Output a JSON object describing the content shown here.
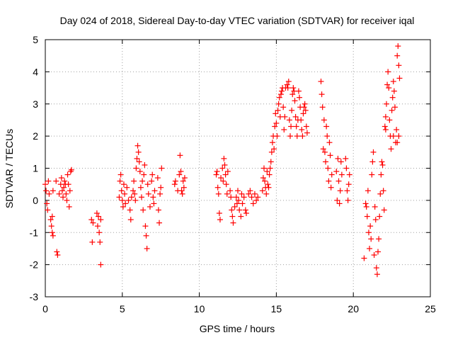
{
  "chart_data": {
    "type": "scatter",
    "title": "Day 024 of 2018, Sidereal Day-to-day VTEC variation (SDTVAR) for receiver iqal",
    "xlabel": "GPS time / hours",
    "ylabel": "SDTVAR / TECUs",
    "xlim": [
      0,
      25
    ],
    "ylim": [
      -3,
      5
    ],
    "xticks": [
      "0",
      "5",
      "10",
      "15",
      "20",
      "25"
    ],
    "yticks": [
      "-3",
      "-2",
      "-1",
      "0",
      "1",
      "2",
      "3",
      "4",
      "5"
    ],
    "grid": true,
    "marker": "+",
    "color": "#ff0000",
    "series": [
      {
        "name": "SDTVAR",
        "points": [
          [
            0.0,
            0.5
          ],
          [
            0.05,
            0.3
          ],
          [
            0.1,
            -0.1
          ],
          [
            0.15,
            -0.3
          ],
          [
            0.2,
            0.6
          ],
          [
            0.25,
            0.2
          ],
          [
            0.35,
            -0.6
          ],
          [
            0.4,
            -0.8
          ],
          [
            0.45,
            -1.0
          ],
          [
            0.5,
            -1.1
          ],
          [
            0.45,
            -0.5
          ],
          [
            0.5,
            0.3
          ],
          [
            0.7,
            0.6
          ],
          [
            0.75,
            -1.6
          ],
          [
            0.8,
            -1.7
          ],
          [
            0.9,
            0.2
          ],
          [
            1.0,
            0.5
          ],
          [
            1.05,
            0.7
          ],
          [
            1.1,
            0.3
          ],
          [
            1.15,
            0.1
          ],
          [
            1.2,
            0.4
          ],
          [
            1.25,
            0.6
          ],
          [
            1.3,
            0.5
          ],
          [
            1.35,
            0.2
          ],
          [
            1.4,
            0.0
          ],
          [
            1.45,
            0.8
          ],
          [
            1.5,
            0.5
          ],
          [
            1.55,
            -0.2
          ],
          [
            1.6,
            0.3
          ],
          [
            1.65,
            0.9
          ],
          [
            1.7,
            0.95
          ],
          [
            3.0,
            -0.6
          ],
          [
            3.05,
            -1.3
          ],
          [
            3.1,
            -0.7
          ],
          [
            3.35,
            -0.4
          ],
          [
            3.4,
            -0.8
          ],
          [
            3.45,
            -0.5
          ],
          [
            3.5,
            -1.0
          ],
          [
            3.55,
            -1.3
          ],
          [
            3.6,
            -2.0
          ],
          [
            3.6,
            -0.6
          ],
          [
            4.8,
            0.1
          ],
          [
            4.85,
            0.6
          ],
          [
            4.9,
            0.8
          ],
          [
            4.95,
            0.3
          ],
          [
            5.0,
            0.0
          ],
          [
            5.05,
            -0.2
          ],
          [
            5.1,
            0.5
          ],
          [
            5.15,
            0.2
          ],
          [
            5.2,
            -0.1
          ],
          [
            5.3,
            0.4
          ],
          [
            5.4,
            0.0
          ],
          [
            5.5,
            -0.3
          ],
          [
            5.55,
            -0.6
          ],
          [
            5.6,
            0.1
          ],
          [
            5.7,
            0.3
          ],
          [
            5.75,
            0.6
          ],
          [
            5.8,
            0.2
          ],
          [
            5.85,
            0.0
          ],
          [
            5.9,
            1.0
          ],
          [
            5.95,
            1.3
          ],
          [
            6.0,
            1.7
          ],
          [
            6.05,
            1.5
          ],
          [
            6.1,
            1.2
          ],
          [
            6.15,
            0.9
          ],
          [
            6.2,
            0.4
          ],
          [
            6.25,
            0.1
          ],
          [
            6.3,
            0.6
          ],
          [
            6.35,
            -0.3
          ],
          [
            6.4,
            0.8
          ],
          [
            6.45,
            1.1
          ],
          [
            6.5,
            -0.8
          ],
          [
            6.55,
            -1.1
          ],
          [
            6.6,
            -1.5
          ],
          [
            6.65,
            0.5
          ],
          [
            6.7,
            0.2
          ],
          [
            6.8,
            -0.2
          ],
          [
            6.9,
            0.6
          ],
          [
            6.95,
            0.8
          ],
          [
            7.0,
            0.1
          ],
          [
            7.05,
            -0.1
          ],
          [
            7.1,
            0.3
          ],
          [
            7.3,
            0.7
          ],
          [
            7.35,
            -0.3
          ],
          [
            7.4,
            -0.7
          ],
          [
            7.45,
            0.2
          ],
          [
            7.5,
            0.4
          ],
          [
            7.55,
            1.0
          ],
          [
            8.4,
            0.5
          ],
          [
            8.45,
            0.6
          ],
          [
            8.6,
            0.3
          ],
          [
            8.7,
            0.8
          ],
          [
            8.75,
            1.4
          ],
          [
            8.8,
            0.9
          ],
          [
            8.85,
            0.3
          ],
          [
            8.9,
            0.2
          ],
          [
            8.95,
            0.6
          ],
          [
            9.0,
            0.4
          ],
          [
            9.05,
            0.7
          ],
          [
            11.1,
            0.8
          ],
          [
            11.15,
            0.9
          ],
          [
            11.2,
            0.4
          ],
          [
            11.25,
            0.2
          ],
          [
            11.3,
            -0.4
          ],
          [
            11.35,
            -0.6
          ],
          [
            11.4,
            0.7
          ],
          [
            11.5,
            1.0
          ],
          [
            11.55,
            0.6
          ],
          [
            11.6,
            1.3
          ],
          [
            11.65,
            1.1
          ],
          [
            11.7,
            0.8
          ],
          [
            11.75,
            0.5
          ],
          [
            11.8,
            0.2
          ],
          [
            11.85,
            0.9
          ],
          [
            12.0,
            0.3
          ],
          [
            12.05,
            0.1
          ],
          [
            12.1,
            -0.3
          ],
          [
            12.15,
            -0.5
          ],
          [
            12.2,
            -0.7
          ],
          [
            12.3,
            -0.2
          ],
          [
            12.4,
            0.1
          ],
          [
            12.45,
            -0.1
          ],
          [
            12.5,
            0.3
          ],
          [
            12.55,
            0.0
          ],
          [
            12.6,
            -0.3
          ],
          [
            12.7,
            -0.5
          ],
          [
            12.75,
            0.2
          ],
          [
            12.8,
            -0.1
          ],
          [
            12.9,
            0.1
          ],
          [
            13.0,
            -0.3
          ],
          [
            13.05,
            -0.4
          ],
          [
            13.2,
            0.2
          ],
          [
            13.3,
            0.3
          ],
          [
            13.4,
            0.1
          ],
          [
            13.5,
            -0.1
          ],
          [
            13.6,
            0.2
          ],
          [
            13.7,
            0.0
          ],
          [
            13.8,
            0.1
          ],
          [
            14.1,
            0.3
          ],
          [
            14.15,
            0.7
          ],
          [
            14.2,
            1.0
          ],
          [
            14.25,
            0.6
          ],
          [
            14.3,
            0.4
          ],
          [
            14.35,
            0.2
          ],
          [
            14.4,
            0.9
          ],
          [
            14.45,
            0.5
          ],
          [
            14.5,
            0.4
          ],
          [
            14.55,
            0.8
          ],
          [
            14.6,
            1.0
          ],
          [
            14.65,
            1.2
          ],
          [
            14.7,
            1.5
          ],
          [
            14.75,
            1.8
          ],
          [
            14.8,
            2.0
          ],
          [
            14.85,
            1.6
          ],
          [
            14.9,
            2.3
          ],
          [
            14.95,
            2.7
          ],
          [
            15.0,
            2.4
          ],
          [
            15.05,
            2.0
          ],
          [
            15.1,
            2.8
          ],
          [
            15.15,
            3.0
          ],
          [
            15.2,
            3.2
          ],
          [
            15.25,
            2.6
          ],
          [
            15.3,
            3.3
          ],
          [
            15.35,
            3.4
          ],
          [
            15.4,
            3.5
          ],
          [
            15.45,
            2.9
          ],
          [
            15.5,
            2.2
          ],
          [
            15.55,
            2.6
          ],
          [
            15.6,
            3.5
          ],
          [
            15.7,
            3.6
          ],
          [
            15.75,
            3.5
          ],
          [
            15.8,
            3.7
          ],
          [
            15.85,
            2.5
          ],
          [
            15.9,
            2.0
          ],
          [
            15.95,
            2.3
          ],
          [
            16.0,
            2.8
          ],
          [
            16.05,
            3.3
          ],
          [
            16.1,
            3.5
          ],
          [
            16.15,
            3.4
          ],
          [
            16.2,
            3.1
          ],
          [
            16.25,
            2.6
          ],
          [
            16.3,
            2.3
          ],
          [
            16.35,
            2.0
          ],
          [
            16.4,
            2.5
          ],
          [
            16.45,
            3.4
          ],
          [
            16.5,
            3.2
          ],
          [
            16.55,
            2.9
          ],
          [
            16.6,
            2.5
          ],
          [
            16.65,
            2.2
          ],
          [
            16.7,
            2.0
          ],
          [
            16.75,
            2.7
          ],
          [
            16.8,
            2.9
          ],
          [
            16.85,
            3.0
          ],
          [
            16.9,
            2.8
          ],
          [
            16.95,
            2.3
          ],
          [
            17.0,
            2.1
          ],
          [
            17.9,
            3.7
          ],
          [
            17.95,
            3.3
          ],
          [
            18.0,
            2.9
          ],
          [
            18.05,
            1.6
          ],
          [
            18.1,
            2.5
          ],
          [
            18.15,
            1.5
          ],
          [
            18.2,
            1.2
          ],
          [
            18.25,
            2.3
          ],
          [
            18.3,
            2.0
          ],
          [
            18.35,
            1.0
          ],
          [
            18.4,
            0.6
          ],
          [
            18.45,
            1.8
          ],
          [
            18.5,
            1.4
          ],
          [
            18.55,
            0.4
          ],
          [
            18.6,
            0.8
          ],
          [
            18.9,
            0.9
          ],
          [
            18.95,
            0.0
          ],
          [
            19.0,
            1.3
          ],
          [
            19.05,
            0.6
          ],
          [
            19.1,
            -0.1
          ],
          [
            19.15,
            0.3
          ],
          [
            19.2,
            1.2
          ],
          [
            19.25,
            0.8
          ],
          [
            19.5,
            1.3
          ],
          [
            19.55,
            1.0
          ],
          [
            19.6,
            0.3
          ],
          [
            19.65,
            0.0
          ],
          [
            19.7,
            0.5
          ],
          [
            19.75,
            0.8
          ],
          [
            20.7,
            -1.8
          ],
          [
            20.8,
            -0.1
          ],
          [
            20.85,
            -0.2
          ],
          [
            20.9,
            -0.5
          ],
          [
            20.95,
            0.3
          ],
          [
            21.0,
            -1.0
          ],
          [
            21.05,
            -1.5
          ],
          [
            21.1,
            -0.8
          ],
          [
            21.15,
            -1.2
          ],
          [
            21.2,
            0.8
          ],
          [
            21.25,
            1.2
          ],
          [
            21.3,
            1.5
          ],
          [
            21.35,
            -1.7
          ],
          [
            21.4,
            -0.2
          ],
          [
            21.45,
            -0.6
          ],
          [
            21.5,
            -2.1
          ],
          [
            21.55,
            -2.3
          ],
          [
            21.6,
            -1.6
          ],
          [
            21.65,
            -1.2
          ],
          [
            21.7,
            -0.5
          ],
          [
            21.75,
            0.2
          ],
          [
            21.8,
            0.8
          ],
          [
            21.85,
            1.2
          ],
          [
            21.9,
            1.1
          ],
          [
            21.95,
            0.3
          ],
          [
            22.0,
            -0.3
          ],
          [
            22.05,
            2.3
          ],
          [
            22.1,
            2.6
          ],
          [
            22.15,
            3.0
          ],
          [
            22.2,
            3.6
          ],
          [
            22.25,
            4.0
          ],
          [
            22.3,
            3.5
          ],
          [
            22.35,
            2.5
          ],
          [
            22.4,
            2.0
          ],
          [
            22.45,
            1.6
          ],
          [
            22.5,
            2.8
          ],
          [
            22.55,
            3.2
          ],
          [
            22.6,
            3.7
          ],
          [
            22.65,
            3.4
          ],
          [
            22.7,
            2.9
          ],
          [
            22.75,
            1.8
          ],
          [
            22.8,
            2.2
          ],
          [
            22.85,
            4.5
          ],
          [
            22.9,
            4.8
          ],
          [
            22.95,
            4.2
          ],
          [
            23.0,
            3.8
          ],
          [
            22.95,
            2.0
          ],
          [
            22.85,
            1.8
          ],
          [
            22.6,
            2.0
          ],
          [
            22.1,
            2.2
          ]
        ]
      }
    ]
  }
}
